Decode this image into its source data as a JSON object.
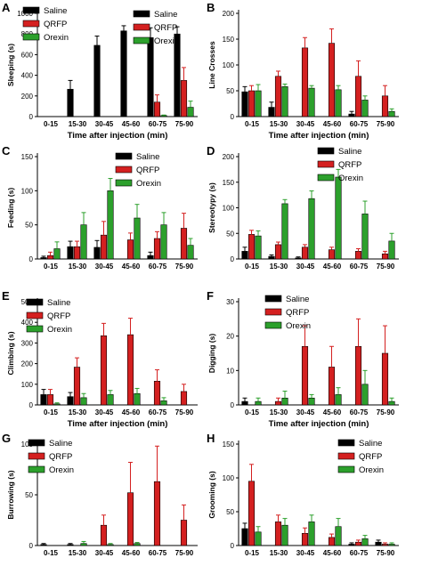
{
  "figure": {
    "colors": {
      "Saline": "#000000",
      "QRFP": "#d42020",
      "Orexin": "#2ca02c"
    },
    "groups": [
      "Saline",
      "QRFP",
      "Orexin"
    ]
  },
  "chart_data": [
    {
      "panel": "A",
      "type": "bar",
      "title": "",
      "xlabel": "Time after injection (min)",
      "ylabel": "Sleeping (s)",
      "ylim": [
        0,
        1000
      ],
      "yticks": [
        0,
        200,
        400,
        600,
        800,
        1000
      ],
      "categories": [
        "0-15",
        "15-30",
        "30-45",
        "45-60",
        "60-75",
        "75-90"
      ],
      "legend": "top-left",
      "series": [
        {
          "name": "Saline",
          "values": [
            0,
            265,
            690,
            830,
            765,
            800
          ],
          "errors": [
            0,
            85,
            90,
            50,
            95,
            70
          ]
        },
        {
          "name": "QRFP",
          "values": [
            0,
            0,
            0,
            0,
            140,
            350
          ],
          "errors": [
            0,
            0,
            0,
            0,
            70,
            125
          ]
        },
        {
          "name": "Orexin",
          "values": [
            0,
            0,
            0,
            0,
            10,
            90
          ],
          "errors": [
            0,
            0,
            0,
            0,
            5,
            60
          ]
        }
      ]
    },
    {
      "panel": "B",
      "type": "bar",
      "title": "",
      "xlabel": "Time after injection (min)",
      "ylabel": "Line Crosses",
      "ylim": [
        0,
        200
      ],
      "yticks": [
        0,
        50,
        100,
        150,
        200
      ],
      "categories": [
        "0-15",
        "15-30",
        "30-45",
        "45-60",
        "60-75",
        "75-90"
      ],
      "legend": "top-right",
      "series": [
        {
          "name": "Saline",
          "values": [
            48,
            18,
            0,
            0,
            5,
            0
          ],
          "errors": [
            10,
            10,
            0,
            0,
            5,
            0
          ]
        },
        {
          "name": "QRFP",
          "values": [
            50,
            78,
            133,
            142,
            78,
            40
          ],
          "errors": [
            10,
            10,
            20,
            28,
            30,
            20
          ]
        },
        {
          "name": "Orexin",
          "values": [
            50,
            58,
            55,
            52,
            32,
            10
          ],
          "errors": [
            12,
            5,
            5,
            8,
            8,
            5
          ]
        }
      ]
    },
    {
      "panel": "C",
      "type": "bar",
      "title": "",
      "xlabel": "",
      "ylabel": "Feeding (s)",
      "ylim": [
        0,
        150
      ],
      "yticks": [
        0,
        50,
        100,
        150
      ],
      "categories": [
        "0-15",
        "15-30",
        "30-45",
        "45-60",
        "60-75",
        "75-90"
      ],
      "legend": "top-right",
      "series": [
        {
          "name": "Saline",
          "values": [
            2,
            18,
            17,
            0,
            5,
            0
          ],
          "errors": [
            2,
            8,
            10,
            0,
            5,
            0
          ]
        },
        {
          "name": "QRFP",
          "values": [
            5,
            18,
            35,
            28,
            30,
            45
          ],
          "errors": [
            5,
            8,
            20,
            10,
            10,
            22
          ]
        },
        {
          "name": "Orexin",
          "values": [
            15,
            50,
            100,
            60,
            50,
            20
          ],
          "errors": [
            10,
            18,
            18,
            20,
            18,
            10
          ]
        }
      ]
    },
    {
      "panel": "D",
      "type": "bar",
      "title": "",
      "xlabel": "",
      "ylabel": "Stereotypy (s)",
      "ylim": [
        0,
        200
      ],
      "yticks": [
        0,
        50,
        100,
        150,
        200
      ],
      "categories": [
        "0-15",
        "15-30",
        "30-45",
        "45-60",
        "60-75",
        "75-90"
      ],
      "legend": "top-right",
      "series": [
        {
          "name": "Saline",
          "values": [
            15,
            5,
            2,
            0,
            0,
            0
          ],
          "errors": [
            8,
            3,
            2,
            0,
            0,
            0
          ]
        },
        {
          "name": "QRFP",
          "values": [
            48,
            28,
            23,
            18,
            15,
            10
          ],
          "errors": [
            8,
            5,
            5,
            5,
            5,
            5
          ]
        },
        {
          "name": "Orexin",
          "values": [
            45,
            108,
            118,
            160,
            88,
            35
          ],
          "errors": [
            10,
            8,
            15,
            15,
            25,
            15
          ]
        }
      ]
    },
    {
      "panel": "E",
      "type": "bar",
      "title": "",
      "xlabel": "Time after injection (min)",
      "ylabel": "Climbing (s)",
      "ylim": [
        0,
        500
      ],
      "yticks": [
        0,
        100,
        200,
        300,
        400,
        500
      ],
      "categories": [
        "0-15",
        "15-30",
        "30-45",
        "45-60",
        "60-75",
        "75-90"
      ],
      "legend": "top-left",
      "series": [
        {
          "name": "Saline",
          "values": [
            50,
            40,
            0,
            0,
            0,
            0
          ],
          "errors": [
            25,
            20,
            0,
            0,
            0,
            0
          ]
        },
        {
          "name": "QRFP",
          "values": [
            50,
            183,
            335,
            340,
            115,
            65
          ],
          "errors": [
            25,
            45,
            60,
            80,
            55,
            35
          ]
        },
        {
          "name": "Orexin",
          "values": [
            5,
            35,
            50,
            55,
            20,
            0
          ],
          "errors": [
            5,
            20,
            20,
            25,
            15,
            0
          ]
        }
      ]
    },
    {
      "panel": "F",
      "type": "bar",
      "title": "",
      "xlabel": "Time after injection (min)",
      "ylabel": "Digging (s)",
      "ylim": [
        0,
        30
      ],
      "yticks": [
        0,
        10,
        20,
        30
      ],
      "categories": [
        "0-15",
        "15-30",
        "30-45",
        "45-60",
        "60-75",
        "75-90"
      ],
      "legend": "top-left",
      "series": [
        {
          "name": "Saline",
          "values": [
            1,
            0,
            0,
            0,
            0,
            0
          ],
          "errors": [
            1,
            0,
            0,
            0,
            0,
            0
          ]
        },
        {
          "name": "QRFP",
          "values": [
            0,
            1,
            17,
            11,
            17,
            15
          ],
          "errors": [
            0,
            1,
            6,
            6,
            8,
            8
          ]
        },
        {
          "name": "Orexin",
          "values": [
            1,
            2,
            2,
            3,
            6,
            1
          ],
          "errors": [
            1,
            2,
            1,
            2,
            4,
            1
          ]
        }
      ]
    },
    {
      "panel": "G",
      "type": "bar",
      "title": "",
      "xlabel": "",
      "ylabel": "Burrowing (s)",
      "ylim": [
        0,
        100
      ],
      "yticks": [
        0,
        50,
        100
      ],
      "categories": [
        "0-15",
        "15-30",
        "30-45",
        "45-60",
        "60-75",
        "75-90"
      ],
      "legend": "top-left",
      "series": [
        {
          "name": "Saline",
          "values": [
            1,
            1,
            0,
            0,
            0,
            0
          ],
          "errors": [
            1,
            1,
            0,
            0,
            0,
            0
          ]
        },
        {
          "name": "QRFP",
          "values": [
            0,
            0,
            20,
            52,
            63,
            25
          ],
          "errors": [
            0,
            0,
            10,
            30,
            35,
            15
          ]
        },
        {
          "name": "Orexin",
          "values": [
            0,
            2,
            1,
            2,
            0,
            0
          ],
          "errors": [
            0,
            2,
            1,
            1,
            0,
            0
          ]
        }
      ]
    },
    {
      "panel": "H",
      "type": "bar",
      "title": "",
      "xlabel": "",
      "ylabel": "Grooming (s)",
      "ylim": [
        0,
        150
      ],
      "yticks": [
        0,
        50,
        100,
        150
      ],
      "categories": [
        "0-15",
        "15-30",
        "30-45",
        "45-60",
        "60-75",
        "75-90"
      ],
      "legend": "top-right",
      "series": [
        {
          "name": "Saline",
          "values": [
            25,
            0,
            0,
            0,
            2,
            5
          ],
          "errors": [
            8,
            0,
            0,
            0,
            2,
            3
          ]
        },
        {
          "name": "QRFP",
          "values": [
            95,
            35,
            18,
            12,
            5,
            2
          ],
          "errors": [
            25,
            10,
            8,
            5,
            3,
            2
          ]
        },
        {
          "name": "Orexin",
          "values": [
            20,
            30,
            35,
            28,
            10,
            2
          ],
          "errors": [
            8,
            10,
            10,
            12,
            5,
            2
          ]
        }
      ]
    }
  ]
}
